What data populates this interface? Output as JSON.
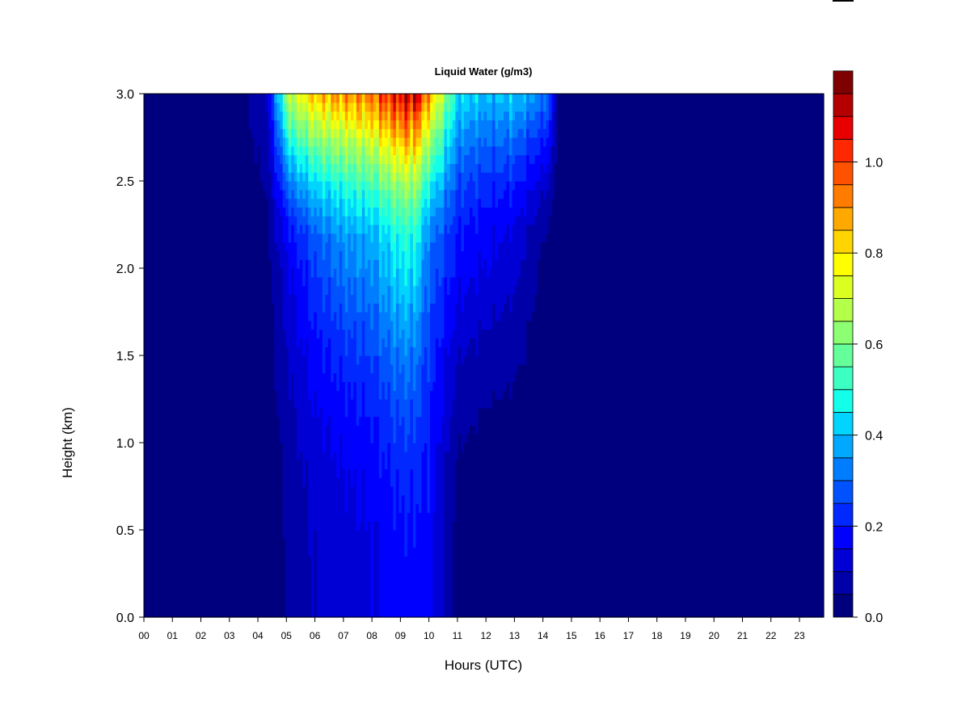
{
  "chart_data": {
    "type": "heatmap",
    "title": "Liquid Water (g/m3)",
    "xlabel": "Hours (UTC)",
    "ylabel": "Height (km)",
    "x_tick_labels": [
      "00",
      "01",
      "02",
      "03",
      "04",
      "05",
      "06",
      "07",
      "08",
      "09",
      "10",
      "11",
      "12",
      "13",
      "14",
      "15",
      "16",
      "17",
      "18",
      "19",
      "20",
      "21",
      "22",
      "23"
    ],
    "xlim": [
      0,
      23.85
    ],
    "ylim": [
      0,
      3.0
    ],
    "y_ticks": [
      0.0,
      0.5,
      1.0,
      1.5,
      2.0,
      2.5,
      3.0
    ],
    "y_tick_labels": [
      "0.0",
      "0.5",
      "1.0",
      "1.5",
      "2.0",
      "2.5",
      "3.0"
    ],
    "colorbar": {
      "min": 0.0,
      "max": 1.15,
      "step": 0.05,
      "ticks": [
        0.0,
        0.2,
        0.4,
        0.6,
        0.8,
        1.0
      ],
      "tick_labels": [
        "0.0",
        "0.2",
        "0.4",
        "0.6",
        "0.8",
        "1.0"
      ],
      "colors": [
        "#00007f",
        "#0000a8",
        "#0000d4",
        "#0000ff",
        "#0028ff",
        "#0052ff",
        "#007cff",
        "#00a8ff",
        "#00d4ff",
        "#14ffea",
        "#3cffc2",
        "#64ff9a",
        "#8cff72",
        "#b4ff4a",
        "#dcff22",
        "#ffff00",
        "#ffd400",
        "#ffa800",
        "#ff7c00",
        "#ff5200",
        "#ff2800",
        "#e80000",
        "#b40000",
        "#7f0000"
      ]
    },
    "grid": false,
    "field_keyframes": [
      {
        "hour": 0.0,
        "top": 0.0,
        "mid": 0.0,
        "low": 0.0
      },
      {
        "hour": 3.2,
        "top": 0.02,
        "mid": 0.02,
        "low": 0.0
      },
      {
        "hour": 4.3,
        "top": 0.1,
        "mid": 0.03,
        "low": 0.0
      },
      {
        "hour": 5.1,
        "top": 0.7,
        "mid": 0.15,
        "low": 0.06
      },
      {
        "hour": 6.0,
        "top": 0.85,
        "mid": 0.25,
        "low": 0.1
      },
      {
        "hour": 7.0,
        "top": 0.9,
        "mid": 0.32,
        "low": 0.12
      },
      {
        "hour": 8.0,
        "top": 0.95,
        "mid": 0.35,
        "low": 0.14
      },
      {
        "hour": 9.0,
        "top": 1.1,
        "mid": 0.45,
        "low": 0.18
      },
      {
        "hour": 9.5,
        "top": 1.12,
        "mid": 0.45,
        "low": 0.18
      },
      {
        "hour": 10.0,
        "top": 0.9,
        "mid": 0.3,
        "low": 0.17
      },
      {
        "hour": 11.0,
        "top": 0.45,
        "mid": 0.18,
        "low": 0.02
      },
      {
        "hour": 12.0,
        "top": 0.4,
        "mid": 0.15,
        "low": 0.0
      },
      {
        "hour": 13.0,
        "top": 0.42,
        "mid": 0.12,
        "low": 0.0
      },
      {
        "hour": 14.2,
        "top": 0.3,
        "mid": 0.02,
        "low": 0.0
      },
      {
        "hour": 14.6,
        "top": 0.0,
        "mid": 0.0,
        "low": 0.0
      },
      {
        "hour": 23.85,
        "top": 0.0,
        "mid": 0.0,
        "low": 0.0
      }
    ]
  }
}
